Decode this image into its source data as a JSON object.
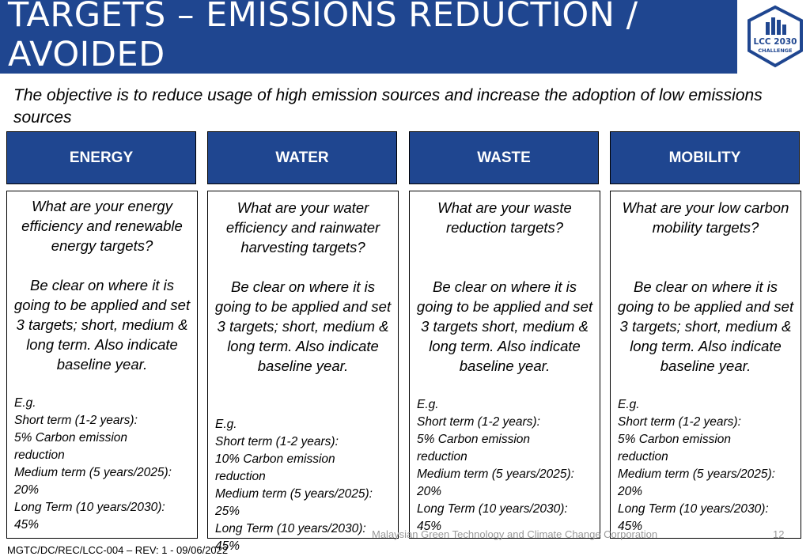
{
  "slide": {
    "title": "TARGETS – EMISSIONS REDUCTION / AVOIDED",
    "logo_text_1": "LCC 2030",
    "logo_text_2": "CHALLENGE",
    "objective": "The objective is to reduce usage of high emission sources and increase the adoption of low emissions sources"
  },
  "columns": [
    {
      "header": "ENERGY",
      "question": "What are your energy efficiency and renewable energy targets?",
      "instruction": "Be clear on where it is going to be applied and set 3 targets; short, medium & long term. Also indicate baseline year.",
      "eg": "E.g.",
      "short_label": "Short term (1-2 years):",
      "short_value": "5% Carbon emission",
      "short_value2": "reduction",
      "medium_label": "Medium term (5 years/2025):",
      "medium_value": "20%",
      "long_label": "Long Term (10 years/2030):",
      "long_value": "45%"
    },
    {
      "header": "WATER",
      "question": "What are your water efficiency and rainwater harvesting targets?",
      "instruction": "Be clear on where it is going to be applied and set 3 targets; short, medium & long term. Also indicate baseline year.",
      "eg": "E.g.",
      "short_label": "Short term (1-2 years):",
      "short_value": "10% Carbon emission",
      "short_value2": "reduction",
      "medium_label": "Medium term (5 years/2025):",
      "medium_value": "25%",
      "long_label": "Long Term (10 years/2030):",
      "long_value": "45%"
    },
    {
      "header": "WASTE",
      "question": "What are your waste reduction targets?",
      "instruction": "Be clear on where it is going to be applied and set 3 targets short, medium & long term. Also indicate baseline year.",
      "eg": "E.g.",
      "short_label": "Short term (1-2 years):",
      "short_value": "5% Carbon emission",
      "short_value2": "reduction",
      "medium_label": "Medium term (5 years/2025):",
      "medium_value": "20%",
      "long_label": "Long Term (10 years/2030):",
      "long_value": "45%"
    },
    {
      "header": "MOBILITY",
      "question": "What are your low carbon mobility targets?",
      "instruction": "Be clear on where it is going to be applied and set 3 targets; short, medium & long term. Also indicate baseline year.",
      "eg": "E.g.",
      "short_label": "Short term (1-2 years):",
      "short_value": "5% Carbon emission",
      "short_value2": "reduction",
      "medium_label": "Medium term (5 years/2025):",
      "medium_value": "20%",
      "long_label": "Long Term (10 years/2030):",
      "long_value": "45%"
    }
  ],
  "footer": {
    "doc_ref": "MGTC/DC/REC/LCC-004 – REV: 1 - 09/06/2022",
    "organization": "Malaysian Green Technology and Climate Change Corporation",
    "page_number": "12"
  },
  "colors": {
    "brand_blue": "#1f4690"
  }
}
